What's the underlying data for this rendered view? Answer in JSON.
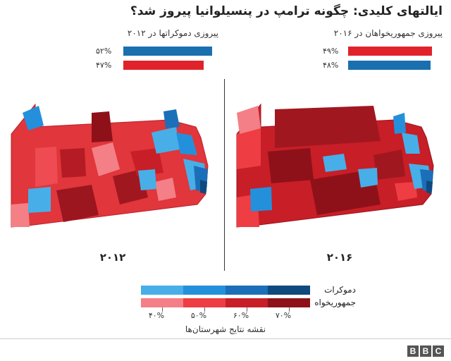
{
  "title": "ایالتهای کلیدی: چگونه ترامپ در پنسیلوانیا پیروز شد؟",
  "left_panel": {
    "subtitle": "پیروزی دموکراتها در ۲۰۱۲",
    "bars": [
      {
        "label": "۵۲%",
        "value": 52,
        "color": "#1a6faf"
      },
      {
        "label": "۴۷%",
        "value": 47,
        "color": "#e0232b"
      }
    ],
    "year": "۲۰۱۲"
  },
  "right_panel": {
    "subtitle": "پیروزی جمهوریخواهان در ۲۰۱۶",
    "bars": [
      {
        "label": "۴۹%",
        "value": 49,
        "color": "#e0232b"
      },
      {
        "label": "۴۸%",
        "value": 48,
        "color": "#1a6faf"
      }
    ],
    "year": "۲۰۱۶"
  },
  "legend": {
    "democrats_label": "دموکرات",
    "republicans_label": "جمهوریخواه",
    "blue_scale": [
      "#48aee8",
      "#2490dc",
      "#1b6fb8",
      "#0e4a7e"
    ],
    "red_scale": [
      "#f47f86",
      "#ee3d43",
      "#c81e27",
      "#8e1119"
    ],
    "ticks": [
      "۴۰%",
      "۵۰%",
      "۶۰%",
      "۷۰%"
    ],
    "caption": "نقشه نتایج شهرستان‌ها"
  },
  "brand": [
    "B",
    "B",
    "C"
  ]
}
